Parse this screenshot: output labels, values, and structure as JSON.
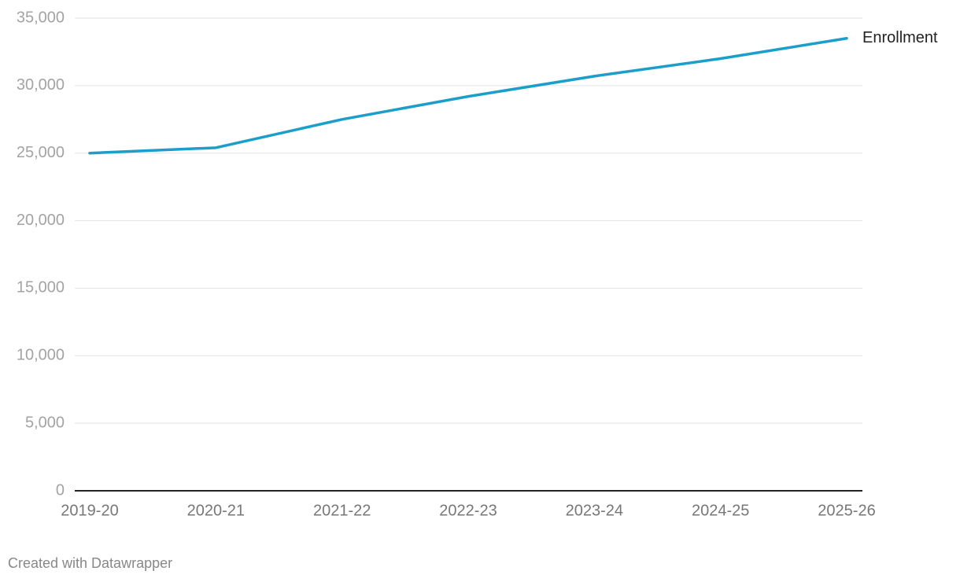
{
  "chart_data": {
    "type": "line",
    "categories": [
      "2019-20",
      "2020-21",
      "2021-22",
      "2022-23",
      "2023-24",
      "2024-25",
      "2025-26"
    ],
    "series": [
      {
        "name": "Enrollment",
        "color": "#1b9ec9",
        "values": [
          25000,
          25400,
          27500,
          29200,
          30700,
          32000,
          33500
        ]
      }
    ],
    "ylim": [
      0,
      35000
    ],
    "yticks": [
      0,
      {
        "value": 5000,
        "label": "5,000"
      },
      {
        "value": 10000,
        "label": "10,000"
      },
      {
        "value": 15000,
        "label": "15,000"
      },
      {
        "value": 20000,
        "label": "20,000"
      },
      {
        "value": 25000,
        "label": "25,000"
      },
      {
        "value": 30000,
        "label": "30,000"
      },
      {
        "value": 35000,
        "label": "35,000"
      }
    ],
    "grid": true,
    "credit": "Created with Datawrapper"
  }
}
